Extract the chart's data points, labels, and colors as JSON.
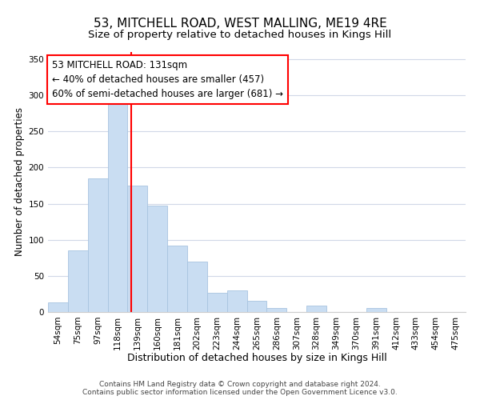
{
  "title": "53, MITCHELL ROAD, WEST MALLING, ME19 4RE",
  "subtitle": "Size of property relative to detached houses in Kings Hill",
  "xlabel": "Distribution of detached houses by size in Kings Hill",
  "ylabel": "Number of detached properties",
  "bar_labels": [
    "54sqm",
    "75sqm",
    "97sqm",
    "118sqm",
    "139sqm",
    "160sqm",
    "181sqm",
    "202sqm",
    "223sqm",
    "244sqm",
    "265sqm",
    "286sqm",
    "307sqm",
    "328sqm",
    "349sqm",
    "370sqm",
    "391sqm",
    "412sqm",
    "433sqm",
    "454sqm",
    "475sqm"
  ],
  "bar_values": [
    13,
    85,
    185,
    290,
    175,
    147,
    92,
    70,
    27,
    30,
    15,
    6,
    0,
    9,
    0,
    0,
    5,
    0,
    0,
    0,
    0
  ],
  "bar_color": "#c9ddf2",
  "bar_edge_color": "#a8c4e0",
  "vline_pos": 3.7,
  "vline_color": "red",
  "annotation_text": "53 MITCHELL ROAD: 131sqm\n← 40% of detached houses are smaller (457)\n60% of semi-detached houses are larger (681) →",
  "annotation_box_edgecolor": "red",
  "annotation_box_facecolor": "white",
  "footer_line1": "Contains HM Land Registry data © Crown copyright and database right 2024.",
  "footer_line2": "Contains public sector information licensed under the Open Government Licence v3.0.",
  "title_fontsize": 11,
  "subtitle_fontsize": 9.5,
  "ylabel_fontsize": 8.5,
  "xlabel_fontsize": 9,
  "tick_fontsize": 7.5,
  "annotation_fontsize": 8.5,
  "footer_fontsize": 6.5,
  "ylim": [
    0,
    360
  ],
  "yticks": [
    0,
    50,
    100,
    150,
    200,
    250,
    300,
    350
  ],
  "background_color": "#ffffff",
  "grid_color": "#d0d8e8"
}
